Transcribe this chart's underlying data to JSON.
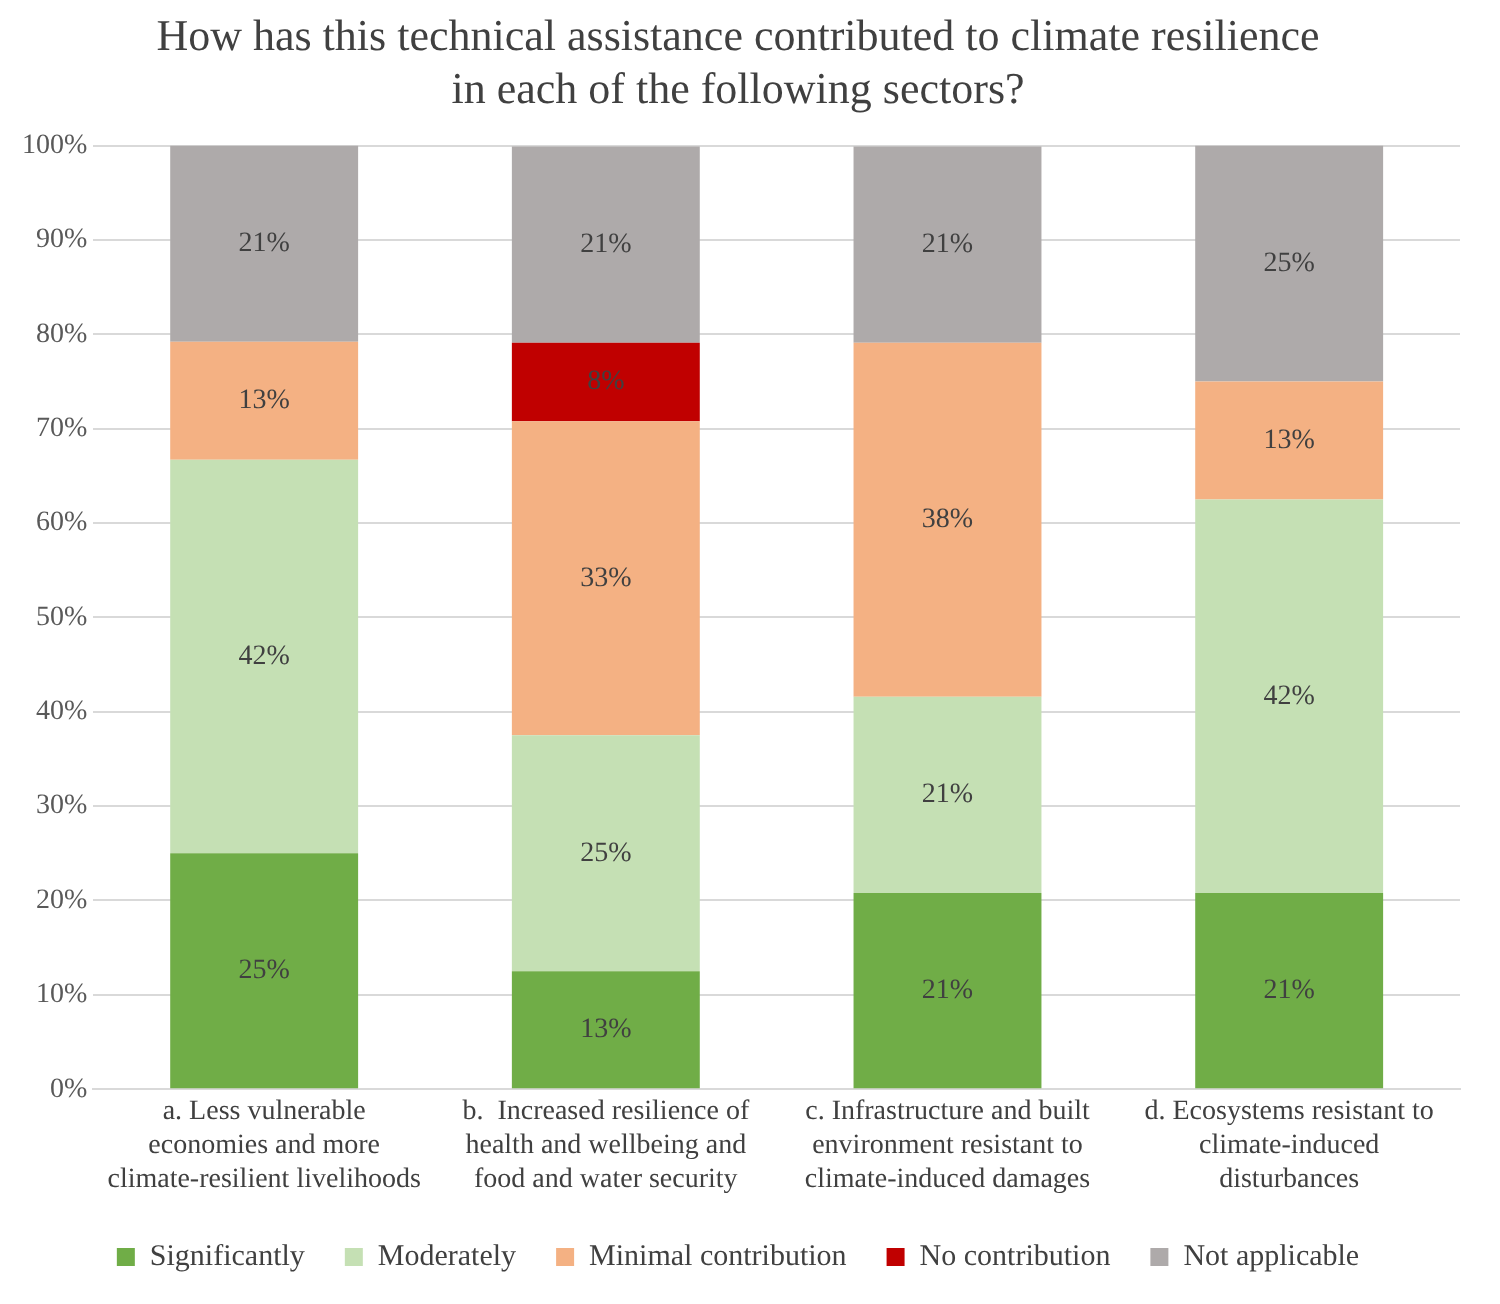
{
  "chart_data": {
    "type": "bar",
    "stacked": true,
    "title": "How has this technical assistance contributed to climate resilience in each of the following sectors?",
    "categories": [
      "a. Less vulnerable economies and more climate-resilient livelihoods",
      "b.  Increased resilience of health and wellbeing and food and water security",
      "c. Infrastructure and built environment resistant to climate-induced damages",
      "d. Ecosystems resistant to climate-induced disturbances"
    ],
    "series": [
      {
        "name": "Significantly",
        "color": "#70ad47",
        "values": [
          25,
          12.5,
          20.8,
          20.8
        ],
        "value_labels": [
          "25%",
          "13%",
          "21%",
          "21%"
        ]
      },
      {
        "name": "Moderately",
        "color": "#c5e0b4",
        "values": [
          41.7,
          25,
          20.8,
          41.7
        ],
        "value_labels": [
          "42%",
          "25%",
          "21%",
          "42%"
        ]
      },
      {
        "name": "Minimal contribution",
        "color": "#f4b183",
        "values": [
          12.5,
          33.3,
          37.5,
          12.5
        ],
        "value_labels": [
          "13%",
          "33%",
          "38%",
          "13%"
        ]
      },
      {
        "name": "No contribution",
        "color": "#c00000",
        "values": [
          0,
          8.3,
          0,
          0
        ],
        "value_labels": [
          null,
          "8%",
          null,
          null
        ]
      },
      {
        "name": "Not applicable",
        "color": "#aeaaaa",
        "values": [
          20.8,
          20.8,
          20.8,
          25
        ],
        "value_labels": [
          "21%",
          "21%",
          "21%",
          "25%"
        ]
      }
    ],
    "ylim": [
      0,
      100
    ],
    "yticks": [
      {
        "value": 0,
        "label": "0%"
      },
      {
        "value": 10,
        "label": "10%"
      },
      {
        "value": 20,
        "label": "20%"
      },
      {
        "value": 30,
        "label": "30%"
      },
      {
        "value": 40,
        "label": "40%"
      },
      {
        "value": 50,
        "label": "50%"
      },
      {
        "value": 60,
        "label": "60%"
      },
      {
        "value": 70,
        "label": "70%"
      },
      {
        "value": 80,
        "label": "80%"
      },
      {
        "value": 90,
        "label": "90%"
      },
      {
        "value": 100,
        "label": "100%"
      }
    ],
    "grid": "y",
    "legend": "bottom"
  }
}
